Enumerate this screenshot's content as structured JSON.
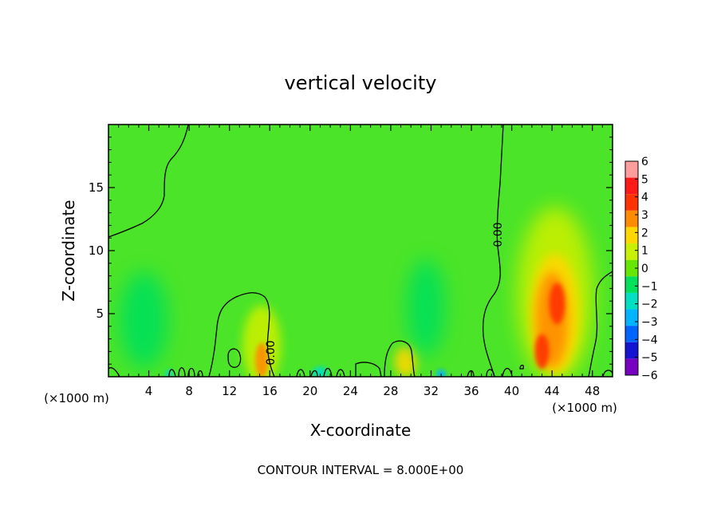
{
  "chart_data": {
    "type": "heatmap",
    "title": "vertical velocity",
    "xlabel": "X-coordinate",
    "ylabel": "Z-coordinate",
    "x_unit_left": "(×1000 m)",
    "x_unit_right": "(×1000 m)",
    "footer": "CONTOUR INTERVAL = 8.000E+00",
    "xlim": [
      0,
      50
    ],
    "ylim": [
      0,
      20
    ],
    "x_ticks": [
      4,
      8,
      12,
      16,
      20,
      24,
      28,
      32,
      36,
      40,
      44,
      48
    ],
    "y_ticks": [
      5,
      10,
      15
    ],
    "x_tick_labels": [
      "4",
      "8",
      "12",
      "16",
      "20",
      "24",
      "28",
      "32",
      "36",
      "40",
      "44",
      "48"
    ],
    "y_tick_labels": [
      "5",
      "10",
      "15"
    ],
    "colorbar": {
      "levels": [
        6,
        5,
        4,
        3,
        2,
        1,
        0,
        -1,
        -2,
        -3,
        -4,
        -5,
        -6
      ],
      "labels": [
        "6",
        "5",
        "4",
        "3",
        "2",
        "1",
        "0",
        "−1",
        "−2",
        "−3",
        "−4",
        "−5",
        "−6"
      ],
      "colors": [
        "#ff9c9c",
        "#ff1a1a",
        "#ff3300",
        "#ff8c00",
        "#ffd700",
        "#c8f000",
        "#66e600",
        "#00e05a",
        "#00e0c0",
        "#00b4ff",
        "#0064ff",
        "#1414d0",
        "#7800c0"
      ]
    },
    "background_color": "#4be428",
    "contour_labels": [
      "0.00",
      "0.00"
    ],
    "features": [
      {
        "x": 44.3,
        "z": 5.5,
        "value": 3.5
      },
      {
        "x": 43.0,
        "z": 2.0,
        "value": 4.0
      },
      {
        "x": 15.2,
        "z": 1.2,
        "value": 3.0
      },
      {
        "x": 29.5,
        "z": 1.0,
        "value": 2.0
      },
      {
        "x": 3.5,
        "z": 4.5,
        "value": -1.5
      },
      {
        "x": 31.5,
        "z": 6.0,
        "value": -1.2
      },
      {
        "x": 21.0,
        "z": 0.4,
        "value": -2.5
      },
      {
        "x": 33.0,
        "z": 0.3,
        "value": -2.5
      }
    ]
  }
}
